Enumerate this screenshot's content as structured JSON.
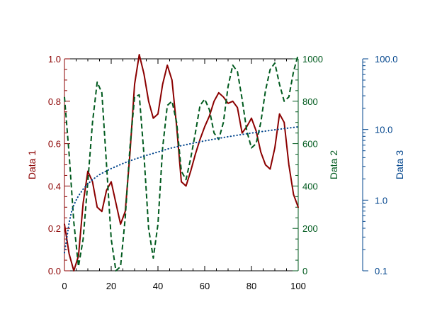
{
  "chart_data": {
    "type": "line",
    "title": "",
    "grid": false,
    "x_axis": {
      "range": [
        0,
        100
      ],
      "ticks": [
        0,
        20,
        40,
        60,
        80,
        100
      ],
      "tick_labels": [
        "0",
        "20",
        "40",
        "60",
        "80",
        "100"
      ],
      "label": ""
    },
    "y_axes": [
      {
        "key": "data1",
        "label": "Data 1",
        "color": "#8b0000",
        "position": "left",
        "scale": "linear",
        "range": [
          0,
          1.0
        ],
        "ticks": [
          0,
          0.2,
          0.4,
          0.6,
          0.8,
          1.0
        ],
        "tick_labels": [
          "0.0",
          "0.2",
          "0.4",
          "0.6",
          "0.8",
          "1.0"
        ]
      },
      {
        "key": "data2",
        "label": "Data 2",
        "color": "#005a1e",
        "position": "right",
        "scale": "linear",
        "range": [
          0,
          1000
        ],
        "ticks": [
          0,
          200,
          400,
          600,
          800,
          1000
        ],
        "tick_labels": [
          "0",
          "200",
          "400",
          "600",
          "800",
          "1000"
        ]
      },
      {
        "key": "data3",
        "label": "Data 3",
        "color": "#00448c",
        "position": "far-right",
        "scale": "log",
        "range": [
          0.1,
          100
        ],
        "ticks": [
          0.1,
          1,
          10,
          100
        ],
        "tick_labels": [
          "0.1",
          "1.0",
          "10.0",
          "100.0"
        ]
      }
    ],
    "series": [
      {
        "axis": "data1",
        "style": "solid",
        "color": "#8b0000",
        "x": [
          0,
          2,
          4,
          6,
          8,
          10,
          12,
          14,
          16,
          18,
          20,
          22,
          24,
          26,
          28,
          30,
          32,
          34,
          36,
          38,
          40,
          42,
          44,
          46,
          48,
          50,
          52,
          54,
          56,
          58,
          60,
          62,
          64,
          66,
          68,
          70,
          72,
          74,
          76,
          78,
          80,
          82,
          84,
          86,
          88,
          90,
          92,
          94,
          96,
          98,
          100
        ],
        "values": [
          0.22,
          0.08,
          0.0,
          0.07,
          0.32,
          0.47,
          0.42,
          0.3,
          0.28,
          0.38,
          0.42,
          0.32,
          0.22,
          0.28,
          0.55,
          0.88,
          1.02,
          0.93,
          0.8,
          0.72,
          0.74,
          0.88,
          0.97,
          0.9,
          0.68,
          0.42,
          0.4,
          0.47,
          0.55,
          0.62,
          0.68,
          0.73,
          0.8,
          0.84,
          0.82,
          0.79,
          0.8,
          0.77,
          0.65,
          0.68,
          0.72,
          0.66,
          0.56,
          0.5,
          0.48,
          0.58,
          0.74,
          0.7,
          0.5,
          0.36,
          0.3
        ]
      },
      {
        "axis": "data2",
        "style": "dashed",
        "color": "#005a1e",
        "x": [
          0,
          2,
          4,
          6,
          8,
          10,
          12,
          14,
          16,
          18,
          20,
          22,
          24,
          26,
          28,
          30,
          32,
          34,
          36,
          38,
          40,
          42,
          44,
          46,
          48,
          50,
          52,
          54,
          56,
          58,
          60,
          62,
          64,
          66,
          68,
          70,
          72,
          74,
          76,
          78,
          80,
          82,
          84,
          86,
          88,
          90,
          92,
          94,
          96,
          98,
          100
        ],
        "values": [
          820,
          550,
          230,
          20,
          150,
          420,
          700,
          890,
          840,
          500,
          150,
          0,
          20,
          250,
          580,
          820,
          830,
          550,
          200,
          60,
          220,
          580,
          780,
          800,
          700,
          470,
          430,
          530,
          650,
          780,
          810,
          760,
          650,
          620,
          700,
          870,
          970,
          940,
          810,
          660,
          580,
          600,
          700,
          850,
          950,
          980,
          880,
          800,
          820,
          940,
          1020
        ]
      },
      {
        "axis": "data3",
        "style": "dotted",
        "color": "#00448c",
        "x": [
          0,
          1,
          2,
          3,
          4,
          5,
          6,
          8,
          10,
          12,
          15,
          18,
          20,
          25,
          30,
          35,
          40,
          45,
          50,
          55,
          60,
          65,
          70,
          75,
          80,
          85,
          90,
          95,
          100
        ],
        "values": [
          0.18,
          0.29,
          0.48,
          0.68,
          0.85,
          1.0,
          1.15,
          1.43,
          1.7,
          1.95,
          2.3,
          2.6,
          2.8,
          3.3,
          3.8,
          4.3,
          4.8,
          5.4,
          5.9,
          6.4,
          6.9,
          7.4,
          7.9,
          8.4,
          8.9,
          9.4,
          9.9,
          10.4,
          10.9
        ]
      }
    ]
  }
}
